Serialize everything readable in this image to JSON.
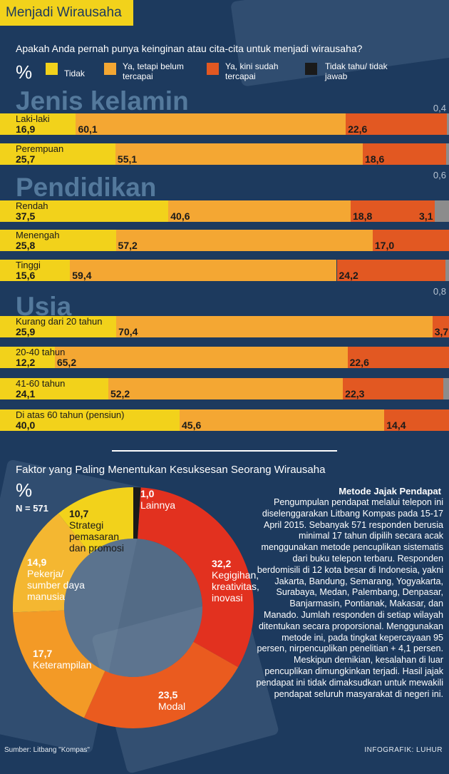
{
  "header": {
    "title": "Menjadi Wirausaha"
  },
  "question": "Apakah Anda pernah punya keinginan atau cita-cita untuk menjadi wirausaha?",
  "percent_symbol": "%",
  "legend": [
    {
      "label": "Tidak",
      "color": "#f2d21b"
    },
    {
      "label": "Ya, tetapi belum tercapai",
      "color": "#f4a733"
    },
    {
      "label": "Ya, kini sudah tercapai",
      "color": "#e25822"
    },
    {
      "label": "Tidak tahu/ tidak jawab",
      "color": "#1a1a1a"
    }
  ],
  "sections": [
    {
      "heading": "Jenis kelamin",
      "note": "0,4",
      "rows": [
        {
          "label": "Laki-laki",
          "labels": [
            "16,9",
            "60,1",
            "22,6",
            ""
          ]
        },
        {
          "label": "Perempuan",
          "labels": [
            "25,7",
            "55,1",
            "18,6",
            ""
          ]
        }
      ]
    },
    {
      "heading": "Pendidikan",
      "note": "0,6",
      "rows": [
        {
          "label": "Rendah",
          "labels": [
            "37,5",
            "40,6",
            "18,8",
            "3,1"
          ]
        },
        {
          "label": "Menengah",
          "labels": [
            "25,8",
            "57,2",
            "17,0",
            ""
          ]
        },
        {
          "label": "Tinggi",
          "labels": [
            "15,6",
            "59,4",
            "24,2",
            ""
          ]
        }
      ]
    },
    {
      "heading": "Usia",
      "note": "0,8",
      "rows": [
        {
          "label": "Kurang dari 20 tahun",
          "labels": [
            "25,9",
            "70,4",
            "3,7",
            ""
          ]
        },
        {
          "label": "20-40 tahun",
          "labels": [
            "12,2",
            "65,2",
            "22,6",
            ""
          ]
        },
        {
          "label": "41-60 tahun",
          "labels": [
            "24,1",
            "52,2",
            "22,3",
            "1,3"
          ]
        },
        {
          "label": "Di atas 60 tahun (pensiun)",
          "labels": [
            "40,0",
            "45,6",
            "14,4",
            ""
          ]
        }
      ]
    }
  ],
  "factors": {
    "title": "Faktor yang Paling Menentukan Kesuksesan Seorang Wirausaha",
    "percent_symbol": "%",
    "n_label": "N = 571",
    "slices": [
      {
        "value_label": "1,0",
        "label": "Lainnya",
        "color": "#1a1a1a"
      },
      {
        "value_label": "32,2",
        "label": "Kegigihan, kreativitas, inovasi",
        "color": "#e2311f"
      },
      {
        "value_label": "23,5",
        "label": "Modal",
        "color": "#ea5b1f"
      },
      {
        "value_label": "17,7",
        "label": "Keterampilan",
        "color": "#f39a26"
      },
      {
        "value_label": "14,9",
        "label": "Pekerja/ sumber daya manusia",
        "color": "#f4b731"
      },
      {
        "value_label": "10,7",
        "label": "Strategi pemasaran dan promosi",
        "color": "#f2d21b"
      }
    ]
  },
  "method": {
    "title": "Metode Jajak Pendapat",
    "body": "Pengumpulan pendapat melalui telepon ini diselenggarakan Litbang Kompas pada 15-17 April 2015. Sebanyak 571 responden berusia minimal 17 tahun dipilih secara acak menggunakan metode pencuplikan sistematis dari buku telepon terbaru. Responden berdomisili di 12 kota besar di Indonesia, yakni Jakarta, Bandung, Semarang, Yogyakarta, Surabaya, Medan, Palembang, Denpasar, Banjarmasin, Pontianak, Makasar, dan Manado. Jumlah responden di setiap wilayah ditentukan secara proporsional. Menggunakan metode ini, pada tingkat kepercayaan 95 persen, nirpencuplikan penelitian + 4,1 persen. Meskipun demikian, kesalahan di luar pencuplikan dimungkinkan terjadi. Hasil jajak pendapat ini tidak dimaksudkan untuk mewakili pendapat seluruh masyarakat di negeri ini."
  },
  "source": "Sumber: Litbang \"Kompas\"",
  "credit": "INFOGRAFIK: LUHUR",
  "chart_data": [
    {
      "type": "bar",
      "stacked": true,
      "orientation": "horizontal",
      "title": "Apakah Anda pernah punya keinginan atau cita-cita untuk menjadi wirausaha?",
      "unit": "%",
      "categories": [
        "Laki-laki",
        "Perempuan",
        "Rendah",
        "Menengah",
        "Tinggi",
        "Kurang dari 20 tahun",
        "20-40 tahun",
        "41-60 tahun",
        "Di atas 60 tahun (pensiun)"
      ],
      "groups": [
        {
          "name": "Jenis kelamin",
          "categories": [
            "Laki-laki",
            "Perempuan"
          ]
        },
        {
          "name": "Pendidikan",
          "categories": [
            "Rendah",
            "Menengah",
            "Tinggi"
          ]
        },
        {
          "name": "Usia",
          "categories": [
            "Kurang dari 20 tahun",
            "20-40 tahun",
            "41-60 tahun",
            "Di atas 60 tahun (pensiun)"
          ]
        }
      ],
      "series": [
        {
          "name": "Tidak",
          "values": [
            16.9,
            25.7,
            37.5,
            25.8,
            15.6,
            25.9,
            12.2,
            24.1,
            40.0
          ]
        },
        {
          "name": "Ya, tetapi belum tercapai",
          "values": [
            60.1,
            55.1,
            40.6,
            57.2,
            59.4,
            70.4,
            65.2,
            52.2,
            45.6
          ]
        },
        {
          "name": "Ya, kini sudah tercapai",
          "values": [
            22.6,
            18.6,
            18.8,
            17.0,
            24.2,
            3.7,
            22.6,
            22.3,
            14.4
          ]
        },
        {
          "name": "Tidak tahu/ tidak jawab",
          "values": [
            0.4,
            0.6,
            3.1,
            0.0,
            0.8,
            0.0,
            0.0,
            1.3,
            0.0
          ]
        }
      ],
      "xlim": [
        0,
        100
      ]
    },
    {
      "type": "pie",
      "donut": true,
      "title": "Faktor yang Paling Menentukan Kesuksesan Seorang Wirausaha",
      "unit": "%",
      "n": 571,
      "categories": [
        "Lainnya",
        "Kegigihan, kreativitas, inovasi",
        "Modal",
        "Keterampilan",
        "Pekerja/ sumber daya manusia",
        "Strategi pemasaran dan promosi"
      ],
      "values": [
        1.0,
        32.2,
        23.5,
        17.7,
        14.9,
        10.7
      ]
    }
  ]
}
